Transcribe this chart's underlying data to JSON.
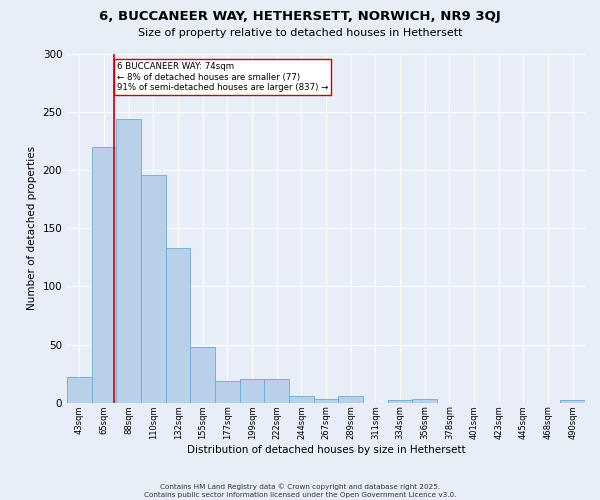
{
  "title": "6, BUCCANEER WAY, HETHERSETT, NORWICH, NR9 3QJ",
  "subtitle": "Size of property relative to detached houses in Hethersett",
  "xlabel": "Distribution of detached houses by size in Hethersett",
  "ylabel": "Number of detached properties",
  "bins": [
    "43sqm",
    "65sqm",
    "88sqm",
    "110sqm",
    "132sqm",
    "155sqm",
    "177sqm",
    "199sqm",
    "222sqm",
    "244sqm",
    "267sqm",
    "289sqm",
    "311sqm",
    "334sqm",
    "356sqm",
    "378sqm",
    "401sqm",
    "423sqm",
    "445sqm",
    "468sqm",
    "490sqm"
  ],
  "bar_heights": [
    22,
    220,
    244,
    196,
    133,
    48,
    19,
    20,
    20,
    6,
    3,
    6,
    0,
    2,
    3,
    0,
    0,
    0,
    0,
    0,
    2
  ],
  "bar_color": "#b8d0e8",
  "bar_edge_color": "#6aaad4",
  "vline_color": "#cc0000",
  "annotation_text": "6 BUCCANEER WAY: 74sqm\n← 8% of detached houses are smaller (77)\n91% of semi-detached houses are larger (837) →",
  "annotation_box_color": "white",
  "annotation_box_edge": "#cc0000",
  "footer": "Contains HM Land Registry data © Crown copyright and database right 2025.\nContains public sector information licensed under the Open Government Licence v3.0.",
  "bg_color": "#e8eef8",
  "grid_color": "#ffffff",
  "ylim": [
    0,
    300
  ],
  "yticks": [
    0,
    50,
    100,
    150,
    200,
    250,
    300
  ]
}
